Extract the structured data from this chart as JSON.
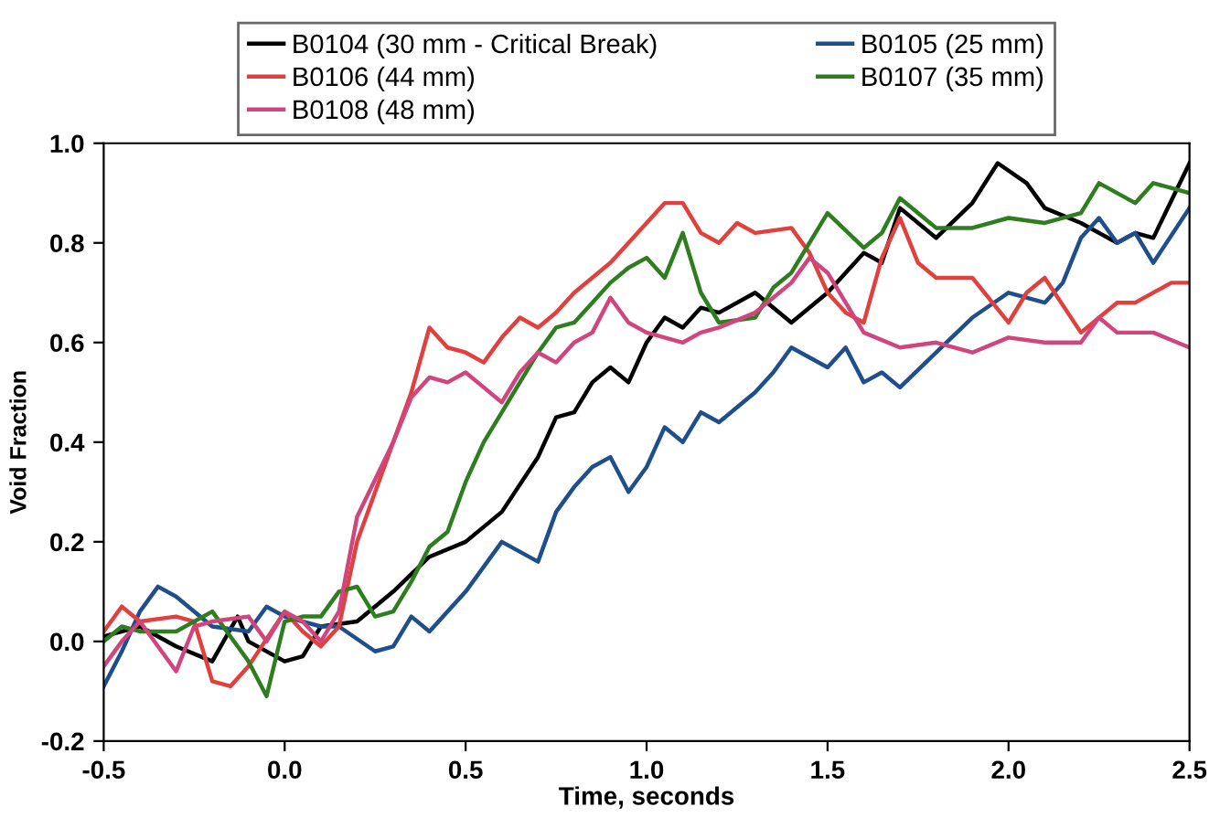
{
  "chart_data": {
    "type": "line",
    "xlabel": "Time, seconds",
    "ylabel": "Void Fraction",
    "xlim": [
      -0.5,
      2.5
    ],
    "ylim": [
      -0.2,
      1.0
    ],
    "xticks": [
      -0.5,
      {
        "value": 0,
        "label": "0.0"
      },
      0.5,
      {
        "value": 1,
        "label": "1.0"
      },
      1.5,
      {
        "value": 2,
        "label": "2.0"
      },
      2.5
    ],
    "yticks": [
      -0.2,
      {
        "value": 0,
        "label": "0.0"
      },
      0.2,
      0.4,
      0.6,
      0.8,
      {
        "value": 1,
        "label": "1.0"
      }
    ],
    "grid": false,
    "legend": "top",
    "marker": "none",
    "line_style": "solid",
    "series": [
      {
        "name": "B0104 (30 mm - Critical Break)",
        "color": "#000000",
        "x": [
          -0.5,
          -0.4,
          -0.3,
          -0.2,
          -0.13,
          -0.1,
          0,
          0.05,
          0.1,
          0.2,
          0.3,
          0.4,
          0.5,
          0.6,
          0.7,
          0.75,
          0.8,
          0.85,
          0.9,
          0.95,
          1.0,
          1.05,
          1.1,
          1.15,
          1.2,
          1.3,
          1.4,
          1.5,
          1.6,
          1.65,
          1.7,
          1.8,
          1.9,
          1.97,
          2.05,
          2.1,
          2.2,
          2.3,
          2.35,
          2.4,
          2.5
        ],
        "values": [
          0.01,
          0.03,
          -0.01,
          -0.04,
          0.05,
          0.0,
          -0.04,
          -0.03,
          0.03,
          0.04,
          0.1,
          0.17,
          0.2,
          0.26,
          0.37,
          0.45,
          0.46,
          0.52,
          0.55,
          0.52,
          0.6,
          0.65,
          0.63,
          0.67,
          0.66,
          0.7,
          0.64,
          0.7,
          0.78,
          0.76,
          0.87,
          0.81,
          0.88,
          0.96,
          0.92,
          0.87,
          0.84,
          0.8,
          0.82,
          0.81,
          0.96
        ]
      },
      {
        "name": "B0105 (25 mm)",
        "color": "#1f4e8c",
        "x": [
          -0.5,
          -0.45,
          -0.4,
          -0.35,
          -0.3,
          -0.2,
          -0.1,
          -0.05,
          0,
          0.1,
          0.15,
          0.25,
          0.3,
          0.35,
          0.4,
          0.5,
          0.55,
          0.6,
          0.7,
          0.75,
          0.8,
          0.85,
          0.9,
          0.95,
          1.0,
          1.05,
          1.1,
          1.15,
          1.2,
          1.3,
          1.35,
          1.4,
          1.5,
          1.55,
          1.6,
          1.65,
          1.7,
          1.8,
          1.9,
          2.0,
          2.1,
          2.15,
          2.2,
          2.25,
          2.3,
          2.35,
          2.4,
          2.5
        ],
        "values": [
          -0.09,
          -0.02,
          0.06,
          0.11,
          0.09,
          0.03,
          0.02,
          0.07,
          0.05,
          0.03,
          0.03,
          -0.02,
          -0.01,
          0.05,
          0.02,
          0.1,
          0.15,
          0.2,
          0.16,
          0.26,
          0.31,
          0.35,
          0.37,
          0.3,
          0.35,
          0.43,
          0.4,
          0.46,
          0.44,
          0.5,
          0.54,
          0.59,
          0.55,
          0.59,
          0.52,
          0.54,
          0.51,
          0.58,
          0.65,
          0.7,
          0.68,
          0.72,
          0.81,
          0.85,
          0.8,
          0.82,
          0.76,
          0.87
        ]
      },
      {
        "name": "B0106 (44 mm)",
        "color": "#e0413f",
        "x": [
          -0.5,
          -0.45,
          -0.4,
          -0.3,
          -0.25,
          -0.2,
          -0.15,
          -0.1,
          0,
          0.05,
          0.1,
          0.15,
          0.2,
          0.25,
          0.3,
          0.35,
          0.4,
          0.45,
          0.5,
          0.55,
          0.6,
          0.65,
          0.7,
          0.75,
          0.8,
          0.9,
          0.95,
          1.0,
          1.05,
          1.1,
          1.15,
          1.2,
          1.25,
          1.3,
          1.4,
          1.45,
          1.5,
          1.55,
          1.6,
          1.65,
          1.7,
          1.75,
          1.8,
          1.9,
          2.0,
          2.05,
          2.1,
          2.2,
          2.3,
          2.35,
          2.45,
          2.5
        ],
        "values": [
          0.02,
          0.07,
          0.04,
          0.05,
          0.04,
          -0.08,
          -0.09,
          -0.05,
          0.06,
          0.02,
          -0.01,
          0.03,
          0.2,
          0.3,
          0.4,
          0.5,
          0.63,
          0.59,
          0.58,
          0.56,
          0.61,
          0.65,
          0.63,
          0.66,
          0.7,
          0.76,
          0.8,
          0.84,
          0.88,
          0.88,
          0.82,
          0.8,
          0.84,
          0.82,
          0.83,
          0.78,
          0.7,
          0.66,
          0.64,
          0.77,
          0.85,
          0.76,
          0.73,
          0.73,
          0.64,
          0.7,
          0.73,
          0.62,
          0.68,
          0.68,
          0.72,
          0.72
        ]
      },
      {
        "name": "B0107 (35 mm)",
        "color": "#2e7d1f",
        "x": [
          -0.5,
          -0.45,
          -0.4,
          -0.3,
          -0.2,
          -0.1,
          -0.05,
          0,
          0.05,
          0.1,
          0.15,
          0.2,
          0.25,
          0.3,
          0.35,
          0.4,
          0.45,
          0.5,
          0.55,
          0.6,
          0.65,
          0.7,
          0.75,
          0.8,
          0.85,
          0.9,
          0.95,
          1.0,
          1.05,
          1.1,
          1.15,
          1.2,
          1.3,
          1.35,
          1.4,
          1.5,
          1.6,
          1.65,
          1.7,
          1.8,
          1.9,
          2.0,
          2.1,
          2.2,
          2.25,
          2.35,
          2.4,
          2.5
        ],
        "values": [
          0.0,
          0.03,
          0.02,
          0.02,
          0.06,
          -0.04,
          -0.11,
          0.04,
          0.05,
          0.05,
          0.1,
          0.11,
          0.05,
          0.06,
          0.12,
          0.19,
          0.22,
          0.32,
          0.4,
          0.46,
          0.52,
          0.58,
          0.63,
          0.64,
          0.68,
          0.72,
          0.75,
          0.77,
          0.73,
          0.82,
          0.7,
          0.64,
          0.65,
          0.71,
          0.74,
          0.86,
          0.79,
          0.82,
          0.89,
          0.83,
          0.83,
          0.85,
          0.84,
          0.86,
          0.92,
          0.88,
          0.92,
          0.9
        ]
      },
      {
        "name": "B0108 (48 mm)",
        "color": "#d1457f",
        "x": [
          -0.5,
          -0.45,
          -0.4,
          -0.3,
          -0.25,
          -0.2,
          -0.1,
          -0.05,
          0,
          0.05,
          0.1,
          0.15,
          0.2,
          0.3,
          0.35,
          0.4,
          0.45,
          0.5,
          0.55,
          0.6,
          0.65,
          0.7,
          0.75,
          0.8,
          0.85,
          0.9,
          0.95,
          1.0,
          1.1,
          1.15,
          1.2,
          1.3,
          1.4,
          1.45,
          1.5,
          1.6,
          1.7,
          1.8,
          1.9,
          2.0,
          2.1,
          2.2,
          2.25,
          2.3,
          2.4,
          2.5
        ],
        "values": [
          -0.05,
          0.0,
          0.04,
          -0.06,
          0.03,
          0.04,
          0.05,
          0.0,
          0.06,
          0.04,
          0.0,
          0.06,
          0.25,
          0.4,
          0.49,
          0.53,
          0.52,
          0.54,
          0.51,
          0.48,
          0.54,
          0.58,
          0.56,
          0.6,
          0.62,
          0.69,
          0.64,
          0.62,
          0.6,
          0.62,
          0.63,
          0.66,
          0.72,
          0.77,
          0.74,
          0.62,
          0.59,
          0.6,
          0.58,
          0.61,
          0.6,
          0.6,
          0.65,
          0.62,
          0.62,
          0.59
        ]
      }
    ]
  }
}
